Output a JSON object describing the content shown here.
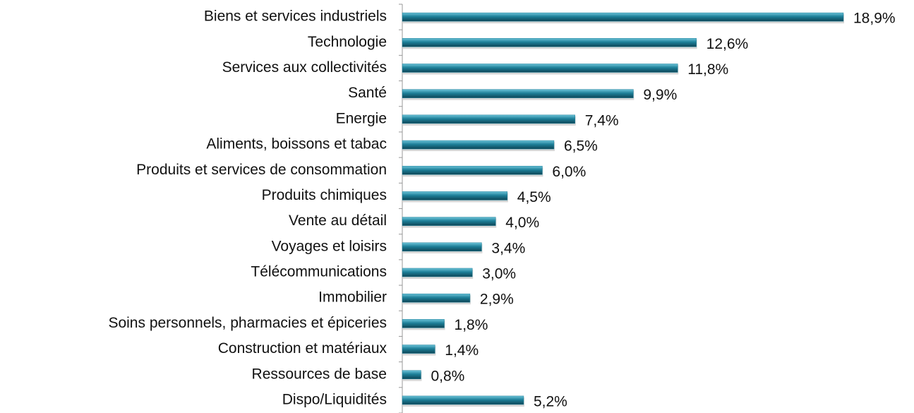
{
  "chart_data": {
    "type": "barh",
    "categories": [
      "Biens et services industriels",
      "Technologie",
      "Services aux collectivités",
      "Santé",
      "Energie",
      "Aliments, boissons et tabac",
      "Produits et services de consommation",
      "Produits chimiques",
      "Vente au détail",
      "Voyages et loisirs",
      "Télécommunications",
      "Immobilier",
      "Soins personnels, pharmacies et épiceries",
      "Construction et matériaux",
      "Ressources de base",
      "Dispo/Liquidités"
    ],
    "values": [
      18.9,
      12.6,
      11.8,
      9.9,
      7.4,
      6.5,
      6.0,
      4.5,
      4.0,
      3.4,
      3.0,
      2.9,
      1.8,
      1.4,
      0.8,
      5.2
    ],
    "value_labels": [
      "18,9%",
      "12,6%",
      "11,8%",
      "9,9%",
      "7,4%",
      "6,5%",
      "6,0%",
      "4,5%",
      "4,0%",
      "3,4%",
      "3,0%",
      "2,9%",
      "1,8%",
      "1,4%",
      "0,8%",
      "5,2%"
    ],
    "color": "#1d7f98"
  }
}
